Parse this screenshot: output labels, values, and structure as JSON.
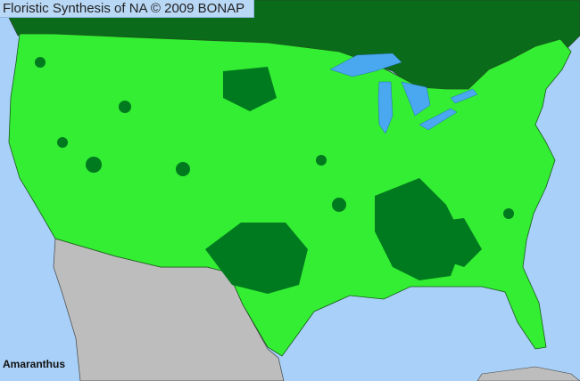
{
  "header": {
    "title": "Floristic Synthesis of NA © 2009 BONAP"
  },
  "map": {
    "taxon_label": "Amaranthus",
    "colors": {
      "ocean": "#a8d0f8",
      "lakes": "#4aa8f0",
      "present": "#33ee33",
      "present_dense": "#007a1e",
      "canada": "#0a6b1a",
      "mexico": "#bdbdbd",
      "borders": "#333333"
    }
  }
}
